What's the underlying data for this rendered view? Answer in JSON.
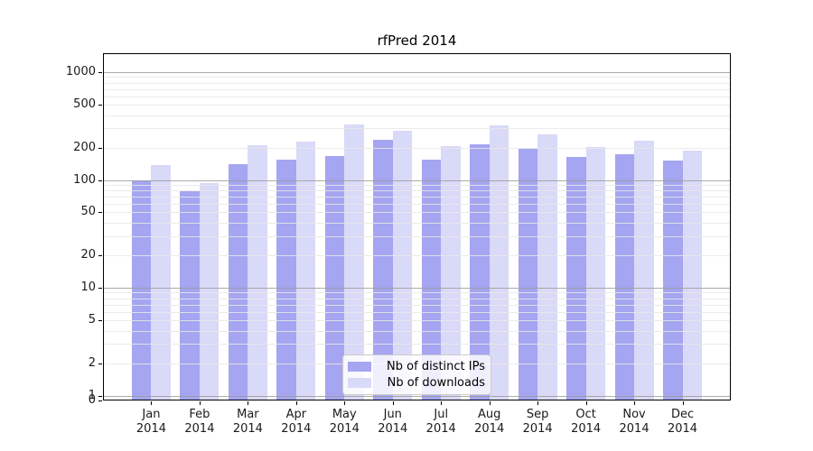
{
  "title": "rfPred 2014",
  "chart_data": {
    "type": "bar",
    "title": "rfPred 2014",
    "categories": [
      "Jan",
      "Feb",
      "Mar",
      "Apr",
      "May",
      "Jun",
      "Jul",
      "Aug",
      "Sep",
      "Oct",
      "Nov",
      "Dec"
    ],
    "category_year": "2014",
    "series": [
      {
        "name": "Nb of distinct IPs",
        "color": "#a5a5f1",
        "values": [
          100,
          78,
          140,
          155,
          168,
          235,
          155,
          213,
          196,
          164,
          174,
          150
        ]
      },
      {
        "name": "Nb of downloads",
        "color": "#d9d9f8",
        "values": [
          137,
          94,
          211,
          228,
          330,
          287,
          206,
          320,
          265,
          202,
          229,
          188
        ]
      }
    ],
    "xlabel": "",
    "ylabel": "",
    "yscale": "symlog",
    "y_ticks": [
      1000,
      500,
      200,
      100,
      50,
      20,
      10,
      5,
      2,
      1,
      0
    ],
    "ylim": [
      0,
      1500
    ],
    "grid": true,
    "grid_minor_color": "#e7e7e7",
    "grid_major_color": "#9c9c9c",
    "legend_position": "lower-center",
    "legend_labels": [
      "Nb of distinct IPs",
      "Nb of downloads"
    ]
  }
}
